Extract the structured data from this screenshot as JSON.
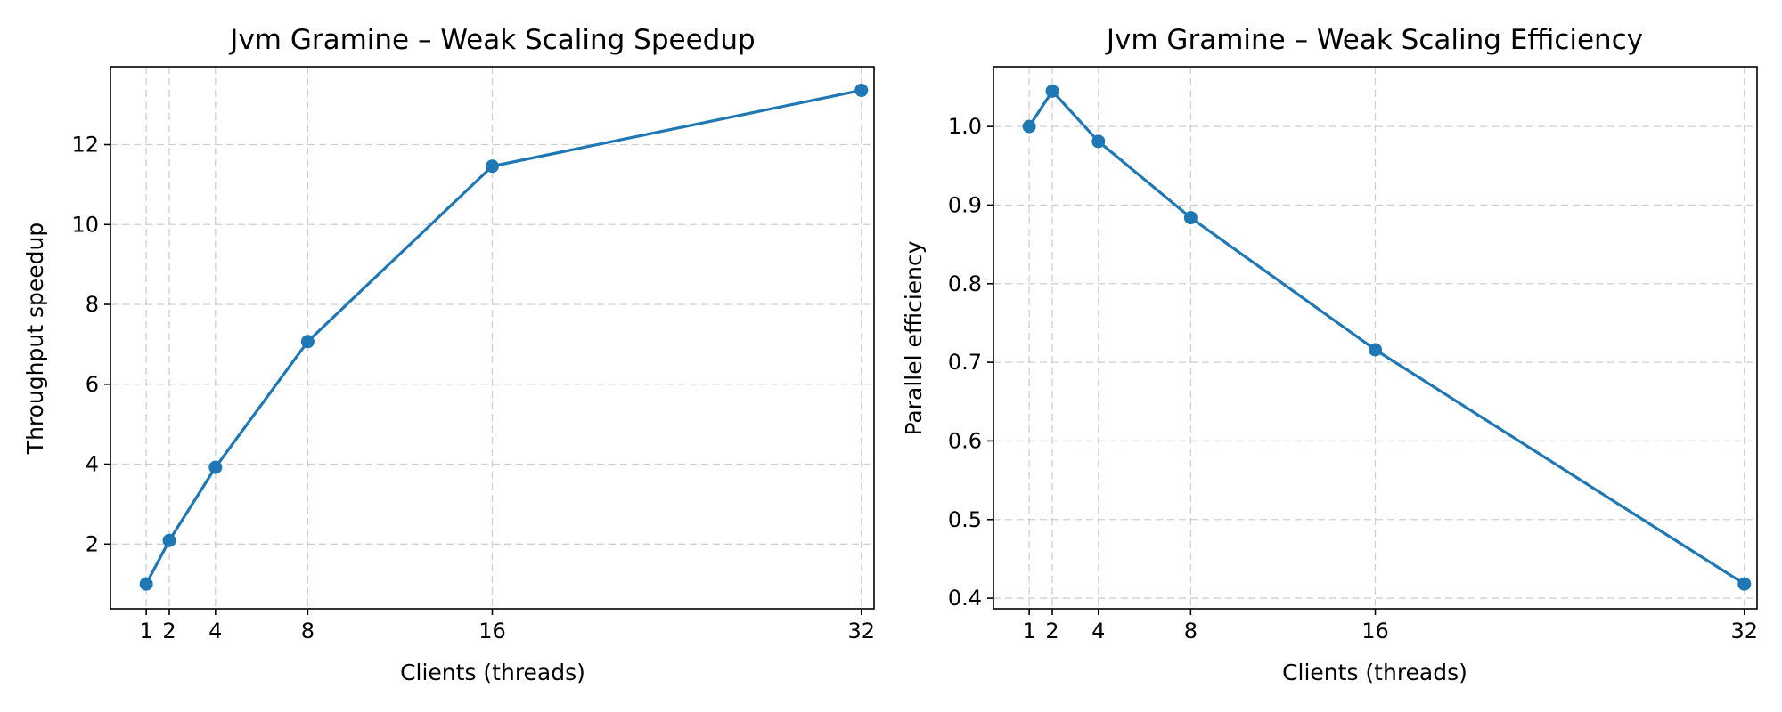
{
  "chart_data": [
    {
      "type": "line",
      "title": "Jvm Gramine – Weak Scaling Speedup",
      "xlabel": "Clients (threads)",
      "ylabel": "Throughput speedup",
      "x": [
        1,
        2,
        4,
        8,
        16,
        32
      ],
      "xticks": [
        1,
        2,
        4,
        8,
        16,
        32
      ],
      "xlim": [
        -0.55,
        32.55
      ],
      "yticks": [
        2,
        4,
        6,
        8,
        10,
        12
      ],
      "ylim": [
        0.38,
        13.95
      ],
      "grid": true,
      "color": "#1f77b4",
      "series": [
        {
          "values": [
            1.0,
            2.09,
            3.92,
            7.07,
            11.46,
            13.36
          ]
        }
      ]
    },
    {
      "type": "line",
      "title": "Jvm Gramine – Weak Scaling Efficiency",
      "xlabel": "Clients (threads)",
      "ylabel": "Parallel efficiency",
      "x": [
        1,
        2,
        4,
        8,
        16,
        32
      ],
      "xticks": [
        1,
        2,
        4,
        8,
        16,
        32
      ],
      "xlim": [
        -0.55,
        32.55
      ],
      "yticks": [
        0.4,
        0.5,
        0.6,
        0.7,
        0.8,
        0.9,
        1.0
      ],
      "ylim": [
        0.3865,
        1.076
      ],
      "grid": true,
      "color": "#1f77b4",
      "series": [
        {
          "values": [
            1.0,
            1.045,
            0.981,
            0.884,
            0.716,
            0.418
          ]
        }
      ]
    }
  ]
}
